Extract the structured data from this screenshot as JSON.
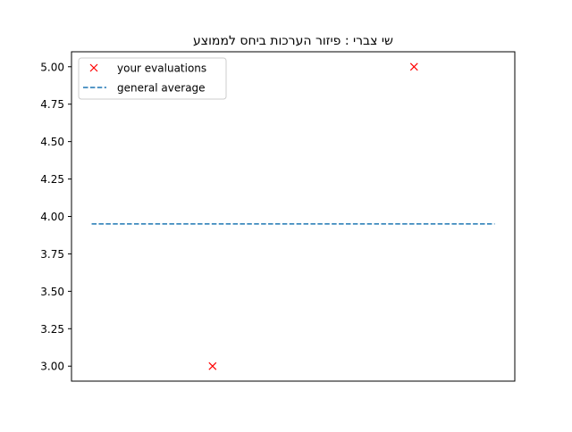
{
  "chart_data": {
    "type": "scatter",
    "title": "שי צברי : פיזור הערכות ביחס לממוצע",
    "xlabel": "",
    "ylabel": "",
    "ylim": [
      2.9,
      5.1
    ],
    "xlim": [
      0.3,
      2.5
    ],
    "x_ticks_visible": false,
    "y_ticks": [
      "3.00",
      "3.25",
      "3.50",
      "3.75",
      "4.00",
      "4.25",
      "4.50",
      "4.75",
      "5.00"
    ],
    "grid": false,
    "legend_position": "upper-left",
    "series": [
      {
        "name": "your evaluations",
        "kind": "markers",
        "marker": "x",
        "color": "#ff0000",
        "points": [
          {
            "x": 1,
            "y": 3.0
          },
          {
            "x": 2,
            "y": 5.0
          }
        ]
      },
      {
        "name": "general average",
        "kind": "dashed-line",
        "color": "#1f77b4",
        "points": [
          {
            "x": 0.4,
            "y": 3.95
          },
          {
            "x": 2.4,
            "y": 3.95
          }
        ]
      }
    ]
  }
}
